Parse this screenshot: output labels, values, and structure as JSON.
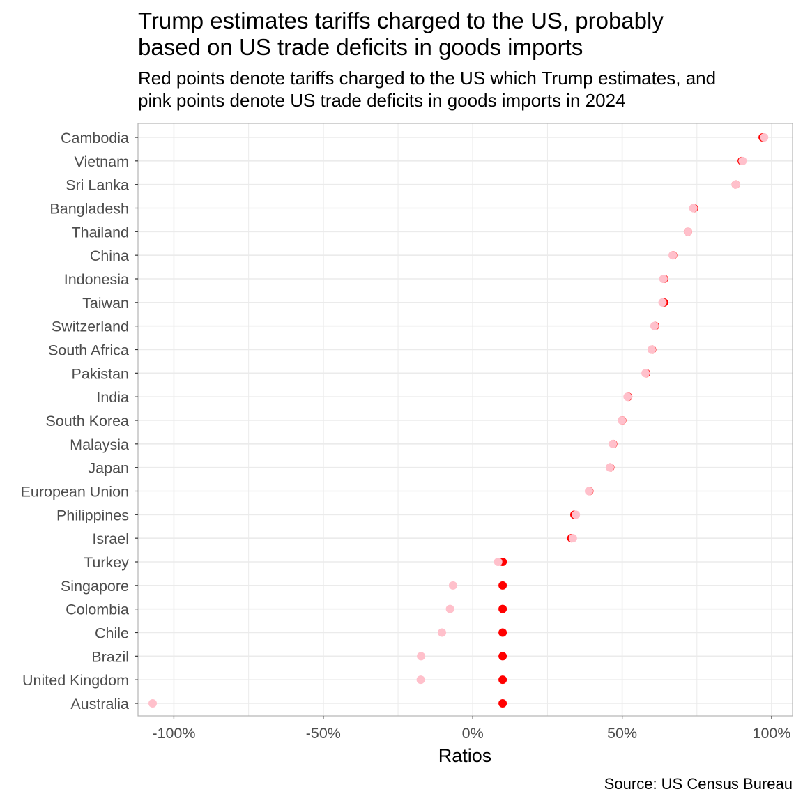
{
  "chart_data": {
    "type": "scatter",
    "title_lines": [
      "Trump estimates tariffs charged to the US, probably",
      "based on US trade deficits in goods imports"
    ],
    "subtitle_lines": [
      "Red points denote tariffs charged to the US which Trump estimates, and",
      "pink points denote US trade deficits in goods imports in 2024"
    ],
    "xlabel": "Ratios",
    "ylabel": "",
    "caption": "Source: US Census Bureau",
    "xlim": [
      -112,
      107
    ],
    "x_ticks": [
      -100,
      -50,
      0,
      50,
      100
    ],
    "x_tick_labels": [
      "-100%",
      "-50%",
      "0%",
      "50%",
      "100%"
    ],
    "x_minor_ticks": [
      -75,
      -25,
      25,
      75
    ],
    "grid": true,
    "legend": "none",
    "colors": {
      "tariff": "#ff0000",
      "deficit": "#ffc0cb",
      "grid": "#ebebeb",
      "panel_border": "#b3b3b3"
    },
    "categories": [
      "Cambodia",
      "Vietnam",
      "Sri Lanka",
      "Bangladesh",
      "Thailand",
      "China",
      "Indonesia",
      "Taiwan",
      "Switzerland",
      "South Africa",
      "Pakistan",
      "India",
      "South Korea",
      "Malaysia",
      "Japan",
      "European Union",
      "Philippines",
      "Israel",
      "Turkey",
      "Singapore",
      "Colombia",
      "Chile",
      "Brazil",
      "United Kingdom",
      "Australia"
    ],
    "series": [
      {
        "key": "tariff",
        "values": [
          97,
          90,
          88,
          74,
          72,
          67,
          64,
          64,
          61,
          60,
          58,
          52,
          50,
          47,
          46,
          39,
          34,
          33,
          10,
          10,
          10,
          10,
          10,
          10,
          10
        ]
      },
      {
        "key": "deficit",
        "values": [
          97.5,
          90.3,
          88,
          73.8,
          72,
          66.9,
          63.8,
          63.5,
          60.8,
          59.9,
          57.8,
          51.8,
          49.9,
          46.9,
          45.9,
          38.9,
          34.5,
          33.5,
          8.5,
          -6.6,
          -7.6,
          -10.3,
          -17.3,
          -17.4,
          -107.1
        ]
      }
    ]
  }
}
